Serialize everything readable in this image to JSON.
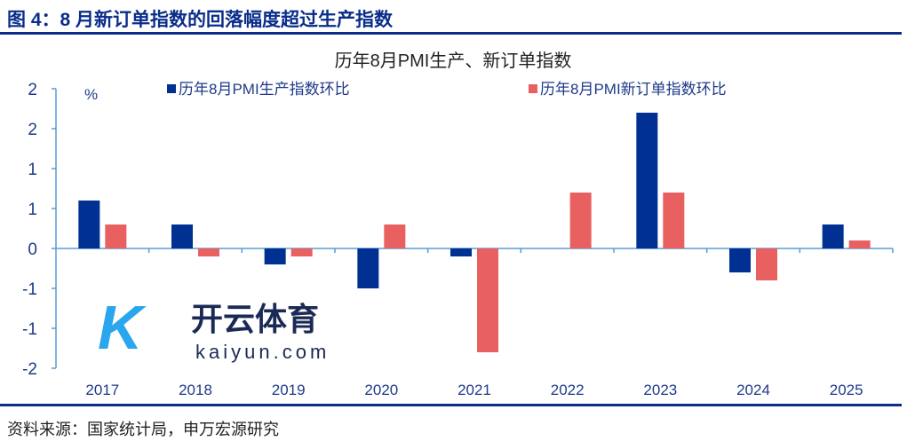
{
  "figure_title": "图 4：8 月新订单指数的回落幅度超过生产指数",
  "source": "资料来源：国家统计局，申万宏源研究",
  "watermark": {
    "logo": "K",
    "name": "开云体育",
    "url": "kaiyun.com"
  },
  "chart_data": {
    "type": "bar",
    "title": "历年8月PMI生产、新订单指数",
    "ylabel": "%",
    "categories": [
      "2017",
      "2018",
      "2019",
      "2020",
      "2021",
      "2022",
      "2023",
      "2024",
      "2025"
    ],
    "series": [
      {
        "name": "历年8月PMI生产指数环比",
        "color": "#003091",
        "values": [
          0.6,
          0.3,
          -0.2,
          -0.5,
          -0.1,
          0.0,
          1.7,
          -0.3,
          0.3
        ]
      },
      {
        "name": "历年8月PMI新订单指数环比",
        "color": "#e86060",
        "values": [
          0.3,
          -0.1,
          -0.1,
          0.3,
          -1.3,
          0.7,
          0.7,
          -0.4,
          0.1
        ]
      }
    ],
    "ylim": [
      -1.5,
      2.0
    ],
    "yticks": [
      2.0,
      1.5,
      1.0,
      0.5,
      0,
      -0.5,
      -1.0,
      -1.5
    ],
    "ytick_labels": [
      "2",
      "2",
      "1",
      "1",
      "0",
      "-1",
      "-1",
      "-2"
    ],
    "legend": "top",
    "grid": false,
    "axis_color": "#5b9bd5",
    "text_color": "#1f3a8a"
  }
}
